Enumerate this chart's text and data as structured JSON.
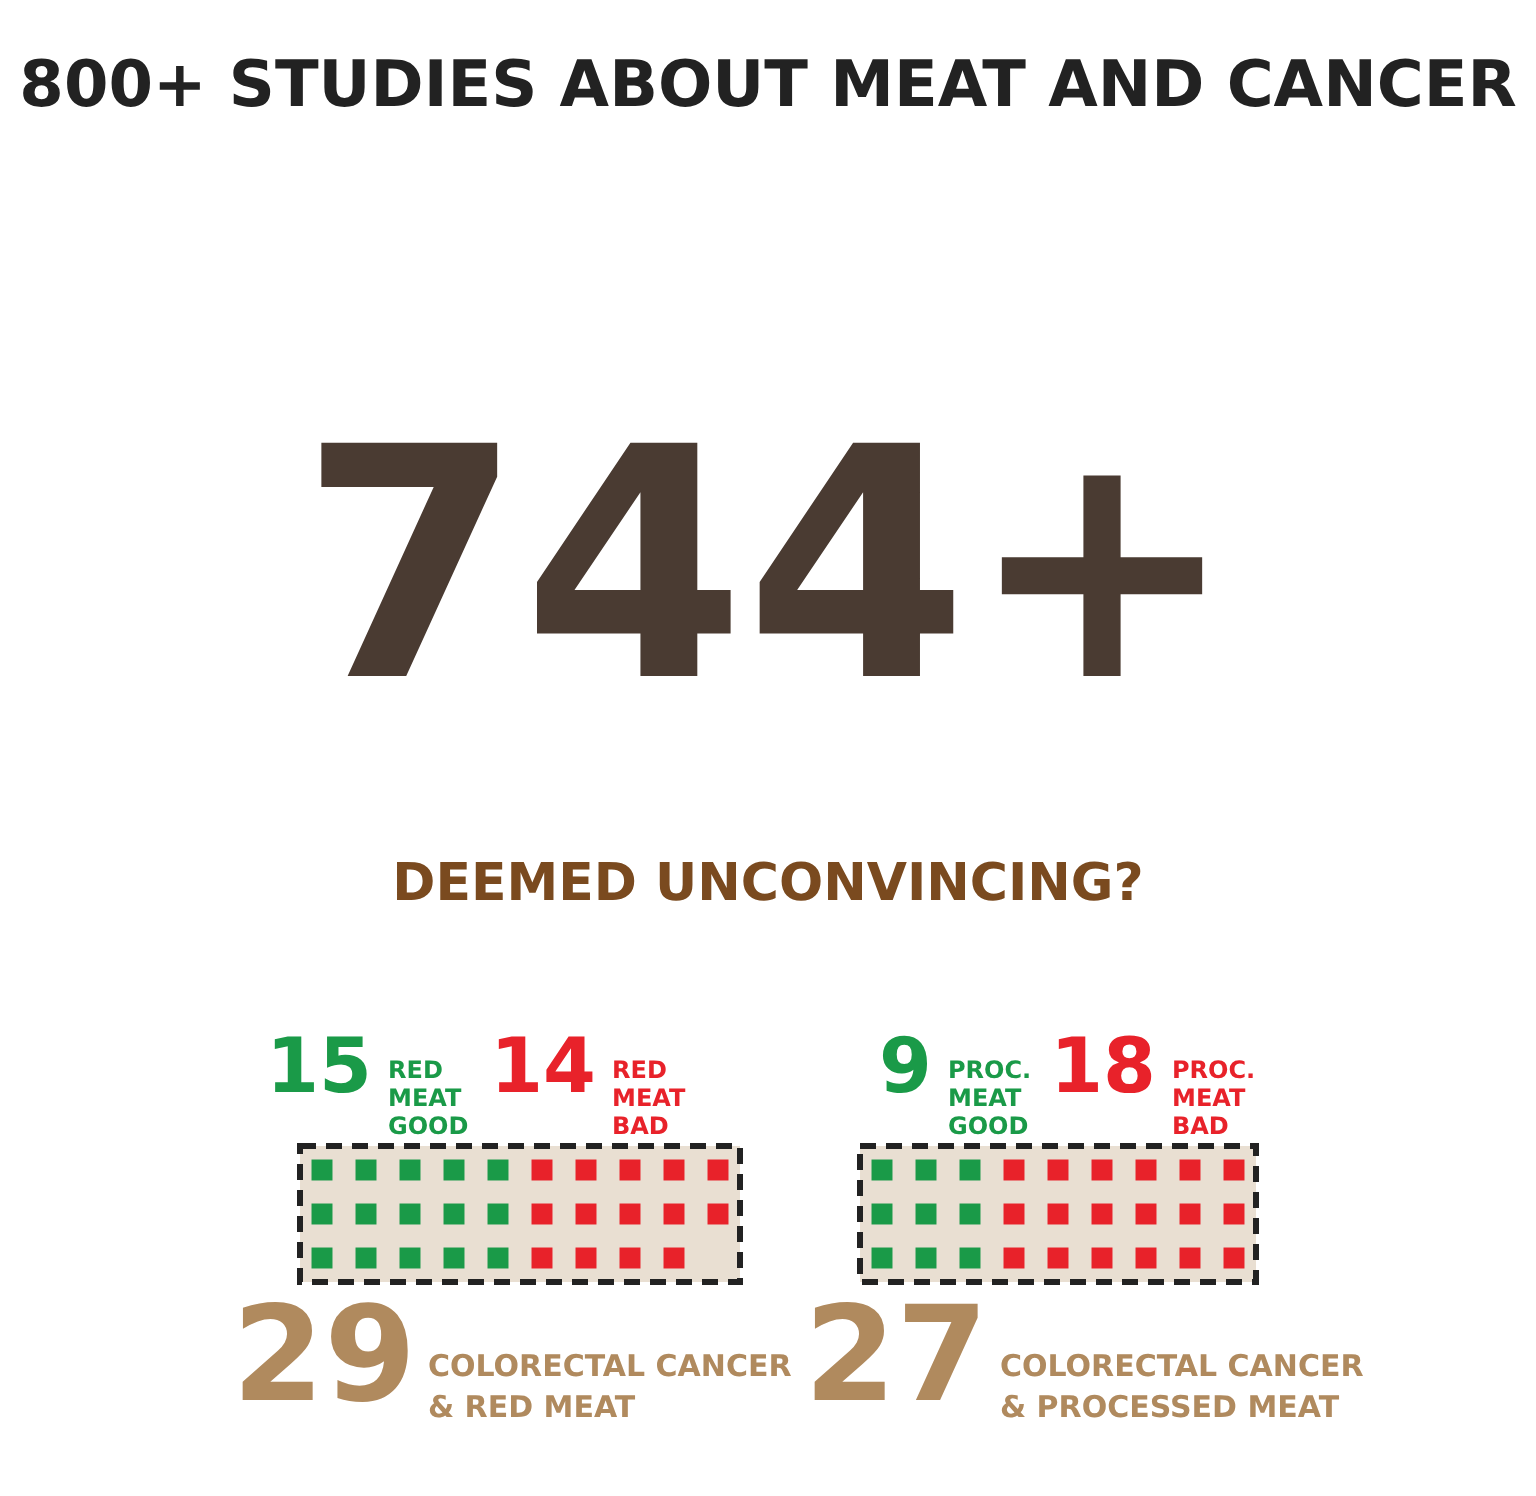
{
  "chart_data": {
    "type": "other",
    "title": "800+ STUDIES ABOUT MEAT AND CANCER",
    "annotations": [
      "744+",
      "DEEMED UNCONVINCING?",
      "29",
      "COLORECTAL CANCER\n& RED MEAT",
      "27",
      "COLORECTAL CANCER\n& PROCESSED MEAT"
    ],
    "categories": [
      "RED MEAT GOOD",
      "RED MEAT BAD",
      "PROC. MEAT GOOD",
      "PROC. MEAT BAD"
    ],
    "values": [
      15,
      14,
      9,
      18
    ],
    "colors": [
      "#1a9a48",
      "#e8222a",
      "#1a9a48",
      "#e8222a"
    ],
    "data_labels": true
  }
}
